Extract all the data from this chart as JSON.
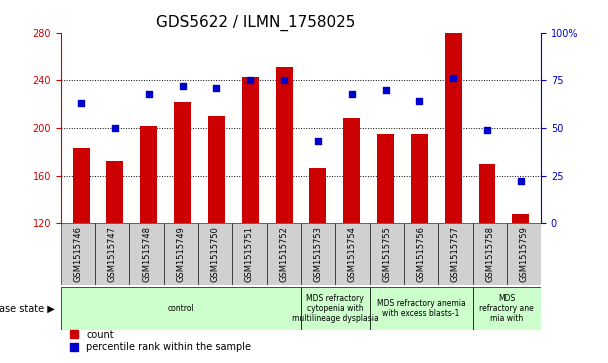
{
  "title": "GDS5622 / ILMN_1758025",
  "samples": [
    "GSM1515746",
    "GSM1515747",
    "GSM1515748",
    "GSM1515749",
    "GSM1515750",
    "GSM1515751",
    "GSM1515752",
    "GSM1515753",
    "GSM1515754",
    "GSM1515755",
    "GSM1515756",
    "GSM1515757",
    "GSM1515758",
    "GSM1515759"
  ],
  "counts": [
    183,
    172,
    202,
    222,
    210,
    243,
    251,
    166,
    208,
    195,
    195,
    280,
    170,
    128
  ],
  "percentile_ranks": [
    63,
    50,
    68,
    72,
    71,
    75,
    75,
    43,
    68,
    70,
    64,
    76,
    49,
    22
  ],
  "ylim_left": [
    120,
    280
  ],
  "ylim_right": [
    0,
    100
  ],
  "yticks_left": [
    120,
    160,
    200,
    240,
    280
  ],
  "yticks_right": [
    0,
    25,
    50,
    75,
    100
  ],
  "bar_color": "#cc0000",
  "dot_color": "#0000cc",
  "bar_width": 0.5,
  "disease_groups": [
    {
      "label": "control",
      "start": 0,
      "end": 7
    },
    {
      "label": "MDS refractory\ncytopenia with\nmultilineage dysplasia",
      "start": 7,
      "end": 9
    },
    {
      "label": "MDS refractory anemia\nwith excess blasts-1",
      "start": 9,
      "end": 12
    },
    {
      "label": "MDS\nrefractory ane\nmia with",
      "start": 12,
      "end": 14
    }
  ],
  "light_green": "#ccffcc",
  "grey_tick_bg": "#d0d0d0",
  "xlabel_disease": "disease state",
  "legend_count": "count",
  "legend_pct": "percentile rank within the sample",
  "title_fontsize": 11,
  "tick_fontsize": 7,
  "label_fontsize": 7,
  "grid_values": [
    160,
    200,
    240
  ]
}
